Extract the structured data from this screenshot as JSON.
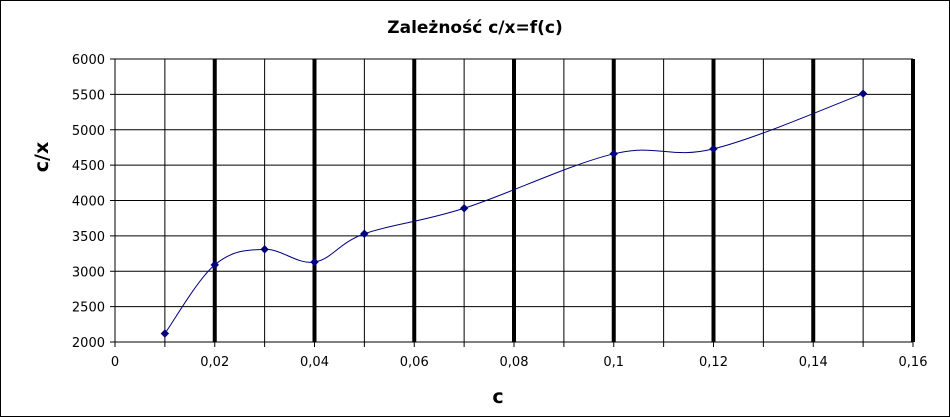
{
  "chart_data": {
    "type": "scatter",
    "title": "Zależność c/x=f(c)",
    "xlabel": "c",
    "ylabel": "c/x",
    "xlim": [
      0,
      0.16
    ],
    "ylim": [
      2000,
      6000
    ],
    "x_ticks": [
      "0",
      "0,02",
      "0,04",
      "0,06",
      "0,08",
      "0,1",
      "0,12",
      "0,14",
      "0,16"
    ],
    "y_ticks": [
      "2000",
      "2500",
      "3000",
      "3500",
      "4000",
      "4500",
      "5000",
      "5500",
      "6000"
    ],
    "grid": true,
    "line_style": "smoothed",
    "series": [
      {
        "color": "#000080",
        "x": [
          0.01,
          0.02,
          0.03,
          0.04,
          0.05,
          0.07,
          0.1,
          0.12,
          0.15
        ],
        "y": [
          2120,
          3090,
          3310,
          3130,
          3530,
          3890,
          4660,
          4730,
          5510
        ]
      }
    ]
  }
}
